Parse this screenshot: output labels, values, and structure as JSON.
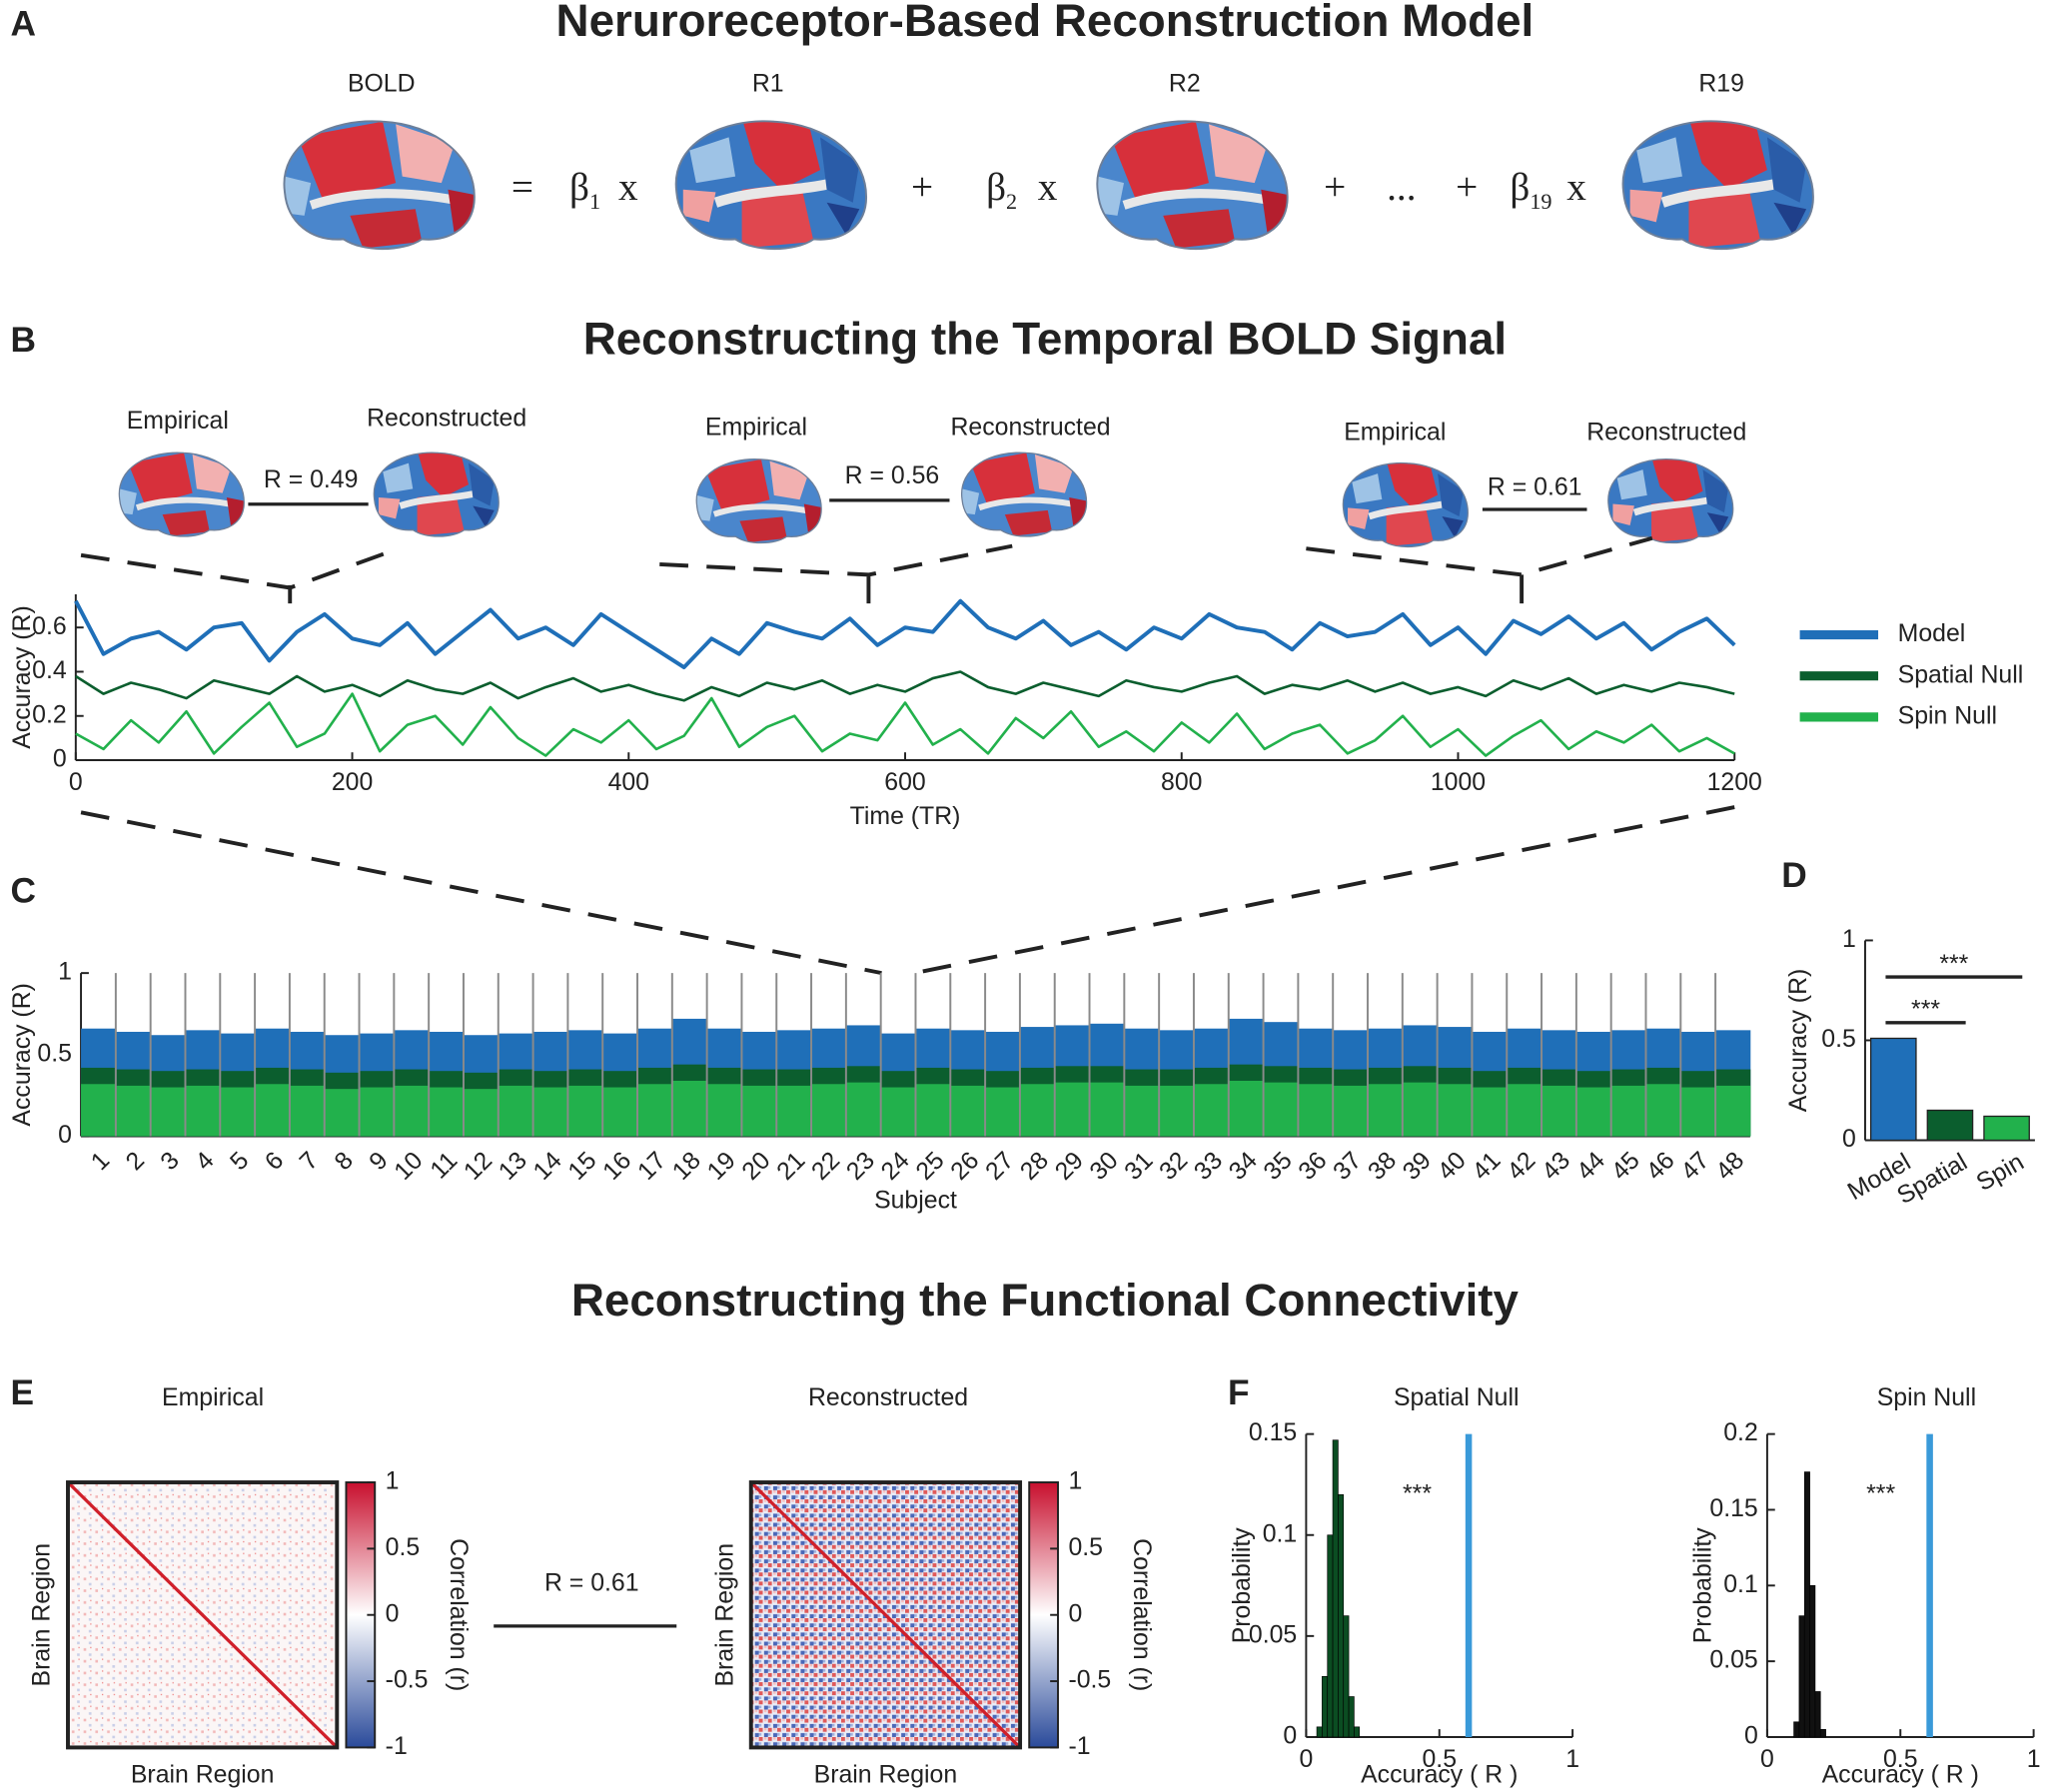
{
  "panel_labels": [
    "A",
    "B",
    "C",
    "D",
    "E",
    "F"
  ],
  "model_diagram": {
    "title": "Neruroreceptor-Based Reconstruction Model",
    "maps": [
      "BOLD",
      "R1",
      "R2",
      "R19"
    ],
    "equals": "=",
    "times": "x",
    "plus": "+",
    "ellipsis": "...",
    "beta": "β",
    "beta_subscripts": [
      "1",
      "2",
      "19"
    ]
  },
  "connectivity": {
    "title": "Reconstructing the Functional Connectivity",
    "comparison": "R = 0.61"
  },
  "chart_data": [
    {
      "type": "line",
      "title": "Reconstructing the Temporal BOLD Signal",
      "xlabel": "Time (TR)",
      "ylabel": "Accuracy (R)",
      "x": [
        0,
        20,
        40,
        60,
        80,
        100,
        120,
        140,
        160,
        180,
        200,
        220,
        240,
        260,
        280,
        300,
        320,
        340,
        360,
        380,
        400,
        420,
        440,
        460,
        480,
        500,
        520,
        540,
        560,
        580,
        600,
        620,
        640,
        660,
        680,
        700,
        720,
        740,
        760,
        780,
        800,
        820,
        840,
        860,
        880,
        900,
        920,
        940,
        960,
        980,
        1000,
        1020,
        1040,
        1060,
        1080,
        1100,
        1120,
        1140,
        1160,
        1180,
        1200
      ],
      "xlim": [
        0,
        1200
      ],
      "xticks": [
        0,
        200,
        400,
        600,
        800,
        1000,
        1200
      ],
      "ylim": [
        0,
        0.75
      ],
      "yticks": [
        0,
        0.2,
        0.4,
        0.6
      ],
      "legend": "right",
      "series": [
        {
          "name": "Model",
          "color": "#1f6fb8",
          "values": [
            0.72,
            0.48,
            0.55,
            0.58,
            0.5,
            0.6,
            0.62,
            0.45,
            0.58,
            0.66,
            0.55,
            0.52,
            0.62,
            0.48,
            0.58,
            0.68,
            0.55,
            0.6,
            0.52,
            0.66,
            0.58,
            0.5,
            0.42,
            0.55,
            0.48,
            0.62,
            0.58,
            0.55,
            0.64,
            0.52,
            0.6,
            0.58,
            0.72,
            0.6,
            0.55,
            0.63,
            0.52,
            0.58,
            0.5,
            0.6,
            0.55,
            0.66,
            0.6,
            0.58,
            0.5,
            0.62,
            0.56,
            0.58,
            0.66,
            0.52,
            0.6,
            0.48,
            0.63,
            0.57,
            0.65,
            0.55,
            0.62,
            0.5,
            0.58,
            0.64,
            0.52
          ]
        },
        {
          "name": "Spatial Null",
          "color": "#0b5e2e",
          "values": [
            0.38,
            0.3,
            0.35,
            0.32,
            0.28,
            0.36,
            0.33,
            0.3,
            0.38,
            0.31,
            0.34,
            0.29,
            0.36,
            0.32,
            0.3,
            0.35,
            0.28,
            0.33,
            0.37,
            0.31,
            0.34,
            0.3,
            0.27,
            0.33,
            0.29,
            0.35,
            0.32,
            0.36,
            0.3,
            0.34,
            0.31,
            0.37,
            0.4,
            0.33,
            0.3,
            0.35,
            0.32,
            0.29,
            0.36,
            0.33,
            0.31,
            0.35,
            0.38,
            0.3,
            0.34,
            0.32,
            0.36,
            0.31,
            0.35,
            0.3,
            0.33,
            0.29,
            0.36,
            0.32,
            0.37,
            0.3,
            0.34,
            0.31,
            0.35,
            0.33,
            0.3
          ]
        },
        {
          "name": "Spin Null",
          "color": "#22b14c",
          "values": [
            0.12,
            0.05,
            0.18,
            0.08,
            0.22,
            0.03,
            0.15,
            0.26,
            0.06,
            0.12,
            0.3,
            0.04,
            0.16,
            0.2,
            0.07,
            0.24,
            0.1,
            0.02,
            0.14,
            0.08,
            0.18,
            0.05,
            0.11,
            0.28,
            0.06,
            0.15,
            0.2,
            0.04,
            0.12,
            0.09,
            0.26,
            0.07,
            0.14,
            0.03,
            0.19,
            0.1,
            0.22,
            0.06,
            0.13,
            0.04,
            0.17,
            0.08,
            0.21,
            0.05,
            0.12,
            0.16,
            0.03,
            0.09,
            0.2,
            0.06,
            0.14,
            0.02,
            0.11,
            0.18,
            0.05,
            0.13,
            0.08,
            0.16,
            0.04,
            0.1,
            0.03
          ]
        }
      ],
      "snapshots": [
        {
          "empirical": "Empirical",
          "reconstructed": "Reconstructed",
          "correlation": "R = 0.49"
        },
        {
          "empirical": "Empirical",
          "reconstructed": "Reconstructed",
          "correlation": "R = 0.56"
        },
        {
          "empirical": "Empirical",
          "reconstructed": "Reconstructed",
          "correlation": "R = 0.61"
        }
      ]
    },
    {
      "type": "area",
      "xlabel": "Subject",
      "ylabel": "Accuracy (R)",
      "categories": [
        "1",
        "2",
        "3",
        "4",
        "5",
        "6",
        "7",
        "8",
        "9",
        "10",
        "11",
        "12",
        "13",
        "14",
        "15",
        "16",
        "17",
        "18",
        "19",
        "20",
        "21",
        "22",
        "23",
        "24",
        "25",
        "26",
        "27",
        "28",
        "29",
        "30",
        "31",
        "32",
        "33",
        "34",
        "35",
        "36",
        "37",
        "38",
        "39",
        "40",
        "41",
        "42",
        "43",
        "44",
        "45",
        "46",
        "47",
        "48"
      ],
      "ylim": [
        0,
        1
      ],
      "yticks": [
        0,
        0.5,
        1
      ],
      "series": [
        {
          "color": "#1f6fb8",
          "values": [
            0.66,
            0.64,
            0.62,
            0.65,
            0.63,
            0.66,
            0.64,
            0.62,
            0.63,
            0.65,
            0.64,
            0.62,
            0.63,
            0.64,
            0.65,
            0.63,
            0.66,
            0.72,
            0.66,
            0.64,
            0.65,
            0.66,
            0.68,
            0.63,
            0.66,
            0.65,
            0.64,
            0.67,
            0.68,
            0.69,
            0.66,
            0.65,
            0.66,
            0.72,
            0.7,
            0.66,
            0.65,
            0.66,
            0.68,
            0.67,
            0.64,
            0.66,
            0.65,
            0.64,
            0.65,
            0.66,
            0.64,
            0.65
          ]
        },
        {
          "color": "#0b5e2e",
          "values": [
            0.42,
            0.41,
            0.4,
            0.41,
            0.4,
            0.42,
            0.41,
            0.39,
            0.4,
            0.41,
            0.4,
            0.39,
            0.41,
            0.4,
            0.41,
            0.4,
            0.42,
            0.44,
            0.42,
            0.41,
            0.41,
            0.42,
            0.43,
            0.4,
            0.42,
            0.41,
            0.4,
            0.42,
            0.43,
            0.43,
            0.41,
            0.41,
            0.42,
            0.44,
            0.43,
            0.42,
            0.41,
            0.42,
            0.43,
            0.42,
            0.4,
            0.42,
            0.41,
            0.4,
            0.41,
            0.42,
            0.4,
            0.41
          ]
        },
        {
          "color": "#22b14c",
          "values": [
            0.32,
            0.31,
            0.3,
            0.31,
            0.3,
            0.32,
            0.31,
            0.29,
            0.3,
            0.31,
            0.3,
            0.29,
            0.31,
            0.3,
            0.31,
            0.3,
            0.32,
            0.34,
            0.32,
            0.31,
            0.31,
            0.32,
            0.33,
            0.3,
            0.32,
            0.31,
            0.3,
            0.32,
            0.33,
            0.33,
            0.31,
            0.31,
            0.32,
            0.34,
            0.33,
            0.32,
            0.31,
            0.32,
            0.33,
            0.32,
            0.3,
            0.32,
            0.31,
            0.3,
            0.31,
            0.32,
            0.3,
            0.31
          ]
        }
      ]
    },
    {
      "type": "bar",
      "ylabel": "Accuracy (R)",
      "categories": [
        "Model",
        "Spatial",
        "Spin"
      ],
      "values": [
        0.51,
        0.15,
        0.12
      ],
      "colors": [
        "#1f6fb8",
        "#0b5e2e",
        "#22b14c"
      ],
      "ylim": [
        0,
        1
      ],
      "yticks": [
        0,
        0.5,
        1
      ],
      "annotations": [
        "***",
        "***"
      ]
    },
    {
      "type": "heatmap",
      "title": "Empirical",
      "xlabel": "Brain Region",
      "ylabel": "Brain Region",
      "colorbar_label": "Correlation (r)",
      "clim": [
        -1,
        1
      ],
      "cticks": [
        1,
        0.5,
        0,
        -0.5,
        -1
      ]
    },
    {
      "type": "heatmap",
      "title": "Reconstructed",
      "xlabel": "Brain Region",
      "ylabel": "Brain Region",
      "colorbar_label": "Correlation (r)",
      "clim": [
        -1,
        1
      ],
      "cticks": [
        1,
        0.5,
        0,
        -0.5,
        -1
      ]
    },
    {
      "type": "histogram",
      "title": "Spatial Null",
      "xlabel": "Accuracy ( R )",
      "ylabel": "Probability",
      "bins": [
        0.04,
        0.06,
        0.08,
        0.1,
        0.12,
        0.14,
        0.16,
        0.18,
        0.2
      ],
      "values": [
        0.005,
        0.03,
        0.1,
        0.147,
        0.12,
        0.06,
        0.02,
        0.005
      ],
      "color": "#0b4d22",
      "observed": 0.61,
      "observed_color": "#3a9ad9",
      "annotation": "***",
      "xlim": [
        0,
        1
      ],
      "xticks": [
        0,
        0.5,
        1
      ],
      "ylim": [
        0,
        0.15
      ],
      "yticks": [
        0,
        0.05,
        0.1,
        0.15
      ]
    },
    {
      "type": "histogram",
      "title": "Spin Null",
      "xlabel": "Accuracy ( R )",
      "ylabel": "Probability",
      "bins": [
        0.1,
        0.12,
        0.14,
        0.16,
        0.18,
        0.2,
        0.22
      ],
      "values": [
        0.01,
        0.08,
        0.175,
        0.1,
        0.03,
        0.005
      ],
      "color": "#111111",
      "observed": 0.61,
      "observed_color": "#3a9ad9",
      "annotation": "***",
      "xlim": [
        0,
        1
      ],
      "xticks": [
        0,
        0.5,
        1
      ],
      "ylim": [
        0,
        0.2
      ],
      "yticks": [
        0,
        0.05,
        0.1,
        0.15,
        0.2
      ]
    }
  ]
}
